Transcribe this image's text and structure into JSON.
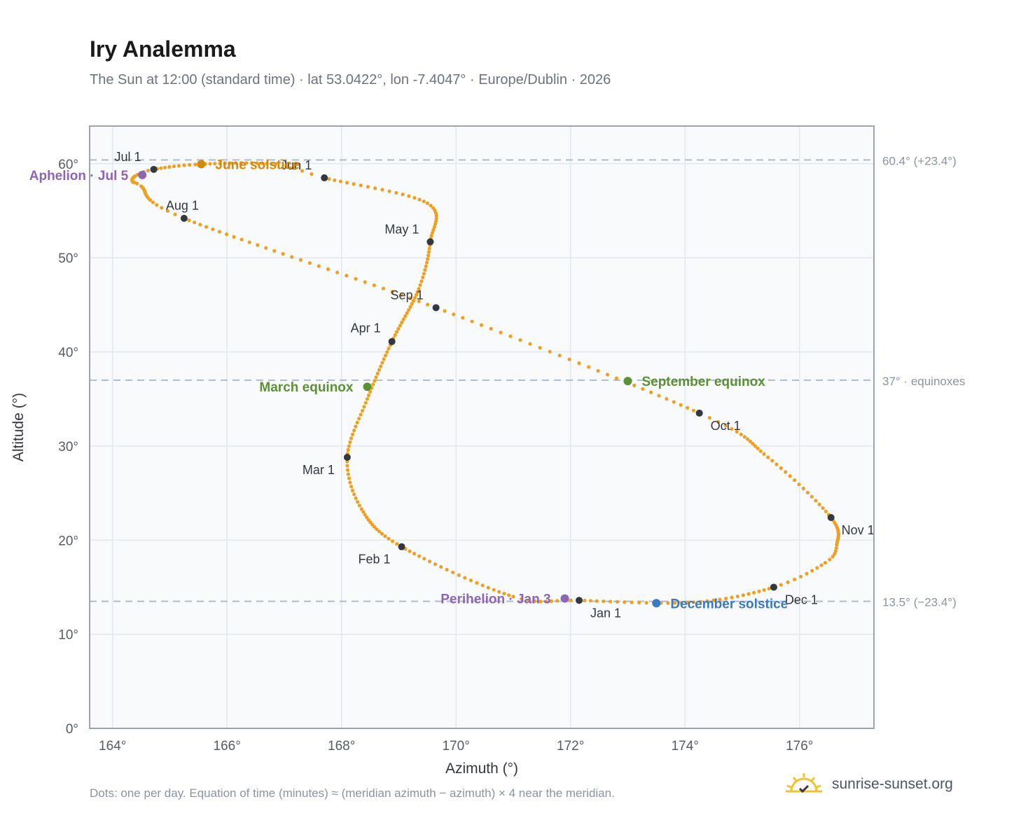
{
  "header": {
    "title": "Iry Analemma",
    "subtitle": "The Sun at 12:00 (standard time) · lat 53.0422°, lon -7.4047° · Europe/Dublin · 2026"
  },
  "footer": {
    "note": "Dots: one per day. Equation of time (minutes) ≈ (meridian azimuth − azimuth) × 4 near the meridian.",
    "brand": "sunrise-sunset.org"
  },
  "colors": {
    "path": "#f0a020",
    "month": "#333740",
    "solstice_june": "#d68a0c",
    "equinox": "#5a9232",
    "solstice_december": "#3a78c2",
    "apsis": "#8e64b5",
    "plot_bg": "#f8fafc",
    "grid": "#e3e8ee",
    "frame": "#9aa3ae",
    "ref_line": "#aebccb"
  },
  "chart_data": {
    "type": "scatter",
    "xlabel": "Azimuth (°)",
    "ylabel": "Altitude (°)",
    "xlim": [
      163.6,
      177.3
    ],
    "ylim": [
      0,
      64
    ],
    "xticks": [
      164,
      166,
      168,
      170,
      172,
      174,
      176
    ],
    "xtick_labels": [
      "164°",
      "166°",
      "168°",
      "170°",
      "172°",
      "174°",
      "176°"
    ],
    "yticks": [
      0,
      10,
      20,
      30,
      40,
      50,
      60
    ],
    "ytick_labels": [
      "0°",
      "10°",
      "20°",
      "30°",
      "40°",
      "50°",
      "60°"
    ],
    "grid": true,
    "series": [
      {
        "points_per": "day",
        "month_starts": [
          {
            "label": "Jan 1",
            "x": 172.15,
            "y": 13.6
          },
          {
            "label": "Feb 1",
            "x": 169.05,
            "y": 19.3
          },
          {
            "label": "Mar 1",
            "x": 168.1,
            "y": 28.8
          },
          {
            "label": "Apr 1",
            "x": 168.88,
            "y": 41.1
          },
          {
            "label": "May 1",
            "x": 169.55,
            "y": 51.7
          },
          {
            "label": "Jun 1",
            "x": 167.7,
            "y": 58.5
          },
          {
            "label": "Jul 1",
            "x": 164.72,
            "y": 59.4
          },
          {
            "label": "Aug 1",
            "x": 165.25,
            "y": 54.2
          },
          {
            "label": "Sep 1",
            "x": 169.65,
            "y": 44.7
          },
          {
            "label": "Oct 1",
            "x": 174.25,
            "y": 33.5
          },
          {
            "label": "Nov 1",
            "x": 176.55,
            "y": 22.4
          },
          {
            "label": "Dec 1",
            "x": 175.55,
            "y": 15.0
          }
        ],
        "events": [
          {
            "label": "June solstice",
            "x": 165.55,
            "y": 59.95,
            "kind": "solstice_june"
          },
          {
            "label": "March equinox",
            "x": 168.45,
            "y": 36.3,
            "kind": "equinox"
          },
          {
            "label": "September equinox",
            "x": 173.0,
            "y": 36.9,
            "kind": "equinox"
          },
          {
            "label": "December solstice",
            "x": 173.5,
            "y": 13.3,
            "kind": "solstice_december"
          },
          {
            "label": "Aphelion · Jul 5",
            "x": 164.52,
            "y": 58.8,
            "kind": "apsis"
          },
          {
            "label": "Perihelion · Jan 3",
            "x": 171.9,
            "y": 13.8,
            "kind": "apsis"
          }
        ]
      }
    ],
    "reference_lines": [
      {
        "y": 60.4,
        "label": "60.4° (+23.4°)"
      },
      {
        "y": 37.0,
        "label": "37° · equinoxes"
      },
      {
        "y": 13.5,
        "label": "13.5° (−23.4°)"
      }
    ]
  }
}
